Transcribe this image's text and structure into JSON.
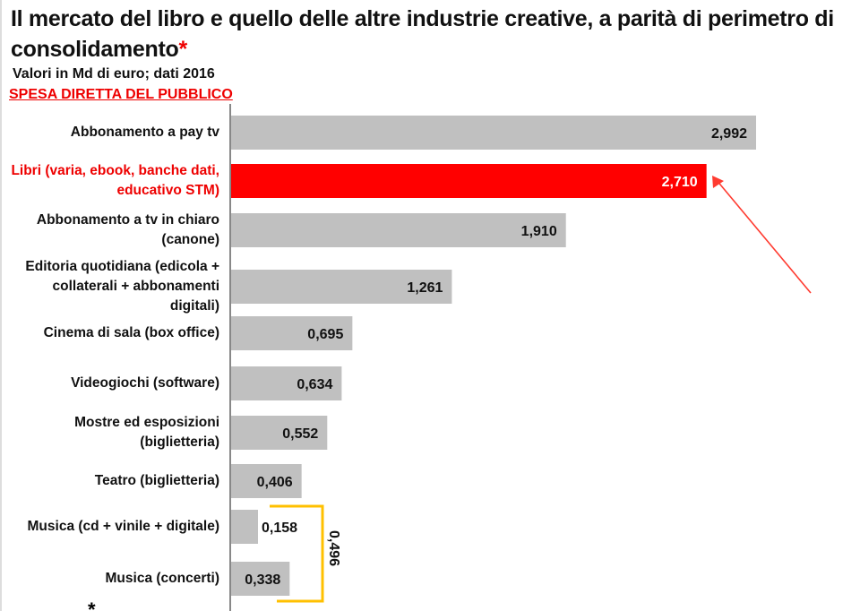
{
  "title": "Il mercato del libro e quello delle altre industrie creative, a parità di perimetro di consolidamento",
  "title_marker": "*",
  "subtitle": "Valori in Md di euro; dati 2016",
  "section": "SPESA DIRETTA DEL PUBBLICO",
  "footnote_marker": "*",
  "colors": {
    "bar": "#c0c0c0",
    "highlight": "#ff0000",
    "bracket": "#ffc000",
    "arrow": "#ff3b30"
  },
  "chart_data": {
    "type": "bar",
    "orientation": "horizontal",
    "categories": [
      "Abbonamento a pay tv",
      "Libri (varia, ebook, banche dati, educativo STM)",
      "Abbonamento a tv in chiaro (canone)",
      "Editoria quotidiana (edicola + collaterali + abbonamenti digitali)",
      "Cinema di sala (box office)",
      "Videogiochi (software)",
      "Mostre ed esposizioni (biglietteria)",
      "Teatro (biglietteria)",
      "Musica (cd + vinile + digitale)",
      "Musica (concerti)"
    ],
    "values": [
      2.992,
      2.71,
      1.91,
      1.261,
      0.695,
      0.634,
      0.552,
      0.406,
      0.158,
      0.338
    ],
    "labels": [
      "2,992",
      "2,710",
      "1,910",
      "1,261",
      "0,695",
      "0,634",
      "0,552",
      "0,406",
      "0,158",
      "0,338"
    ],
    "highlight_index": 1,
    "annotations": [
      {
        "type": "bracket",
        "covers": [
          "Musica (cd + vinile + digitale)",
          "Musica (concerti)"
        ],
        "label": "0,496"
      }
    ],
    "xlim": [
      0,
      3.1
    ],
    "grid": false,
    "legend": "none"
  }
}
